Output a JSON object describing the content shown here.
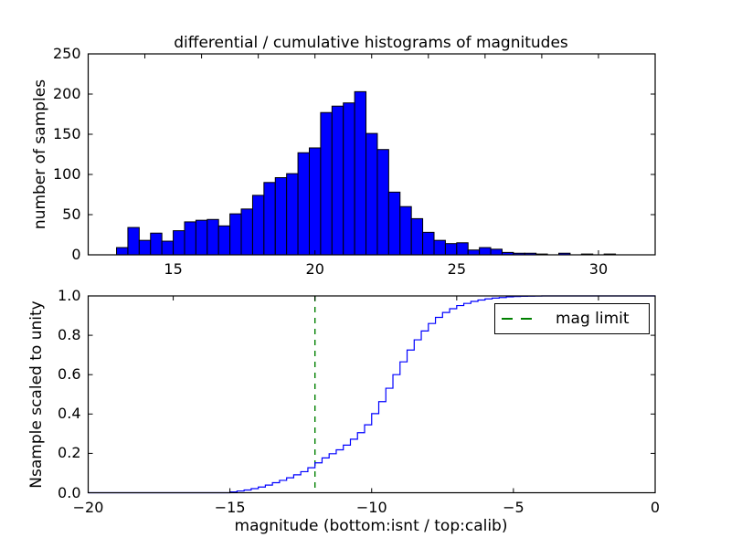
{
  "figure": {
    "title": "differential / cumulative histograms of magnitudes",
    "background": "#ffffff"
  },
  "chart_data": [
    {
      "type": "bar",
      "title": "differential / cumulative histograms of magnitudes",
      "ylabel": "number of samples",
      "xlim": [
        12,
        32
      ],
      "ylim": [
        0,
        250
      ],
      "grid": false,
      "bar_color": "#0000ff",
      "bar_edge_color": "#000000",
      "bin_start": 13.0,
      "bin_width": 0.4,
      "values": [
        9,
        34,
        18,
        27,
        17,
        30,
        41,
        43,
        44,
        36,
        51,
        57,
        74,
        90,
        96,
        101,
        127,
        133,
        177,
        185,
        189,
        203,
        151,
        131,
        78,
        60,
        45,
        28,
        18,
        14,
        15,
        6,
        9,
        7,
        3,
        2,
        2,
        1,
        0,
        2,
        0,
        1,
        0,
        1
      ],
      "xticks": [
        15,
        20,
        25,
        30
      ],
      "xtick_labels": [
        "15",
        "20",
        "25",
        "30"
      ],
      "top_ticks": [
        14,
        16,
        18,
        20,
        22,
        24,
        26,
        28,
        30
      ],
      "yticks": [
        0,
        50,
        100,
        150,
        200,
        250
      ],
      "ytick_labels": [
        "0",
        "50",
        "100",
        "150",
        "200",
        "250"
      ]
    },
    {
      "type": "line",
      "step": true,
      "ylabel": "Nsample scaled to unity",
      "xlabel": "magnitude (bottom:isnt / top:calib)",
      "xlim": [
        -20,
        0
      ],
      "ylim": [
        0.0,
        1.0
      ],
      "grid": false,
      "line_color": "#0000ff",
      "points": [
        [
          -20,
          0
        ],
        [
          -15.25,
          0
        ],
        [
          -15,
          0.004
        ],
        [
          -14.75,
          0.009
        ],
        [
          -14.5,
          0.014
        ],
        [
          -14.25,
          0.021
        ],
        [
          -14,
          0.029
        ],
        [
          -13.75,
          0.039
        ],
        [
          -13.5,
          0.051
        ],
        [
          -13.25,
          0.063
        ],
        [
          -13,
          0.076
        ],
        [
          -12.75,
          0.091
        ],
        [
          -12.5,
          0.107
        ],
        [
          -12.25,
          0.127
        ],
        [
          -12,
          0.152
        ],
        [
          -11.75,
          0.177
        ],
        [
          -11.5,
          0.198
        ],
        [
          -11.25,
          0.218
        ],
        [
          -11,
          0.242
        ],
        [
          -10.75,
          0.272
        ],
        [
          -10.5,
          0.305
        ],
        [
          -10.25,
          0.345
        ],
        [
          -10,
          0.402
        ],
        [
          -9.75,
          0.463
        ],
        [
          -9.5,
          0.531
        ],
        [
          -9.25,
          0.6
        ],
        [
          -9,
          0.665
        ],
        [
          -8.75,
          0.725
        ],
        [
          -8.5,
          0.777
        ],
        [
          -8.25,
          0.822
        ],
        [
          -8,
          0.86
        ],
        [
          -7.75,
          0.891
        ],
        [
          -7.5,
          0.916
        ],
        [
          -7.25,
          0.935
        ],
        [
          -7,
          0.951
        ],
        [
          -6.75,
          0.962
        ],
        [
          -6.5,
          0.972
        ],
        [
          -6.25,
          0.979
        ],
        [
          -6,
          0.985
        ],
        [
          -5.75,
          0.989
        ],
        [
          -5.5,
          0.992
        ],
        [
          -5.25,
          0.995
        ],
        [
          -5,
          0.997
        ],
        [
          -4.75,
          0.998
        ],
        [
          -4.5,
          0.999
        ],
        [
          -4.25,
          0.9995
        ],
        [
          -4,
          1
        ],
        [
          0,
          1
        ]
      ],
      "mag_limit_x": -12,
      "mag_limit_color": "#008000",
      "legend": {
        "label": "mag limit",
        "position": "upper right"
      },
      "xticks": [
        -20,
        -15,
        -10,
        -5,
        0
      ],
      "xtick_labels": [
        "−20",
        "−15",
        "−10",
        "−5",
        "0"
      ],
      "top_ticks": [
        -17,
        -12,
        -7,
        -2
      ],
      "yticks": [
        0.0,
        0.2,
        0.4,
        0.6,
        0.8,
        1.0
      ],
      "ytick_labels": [
        "0.0",
        "0.2",
        "0.4",
        "0.6",
        "0.8",
        "1.0"
      ]
    }
  ]
}
